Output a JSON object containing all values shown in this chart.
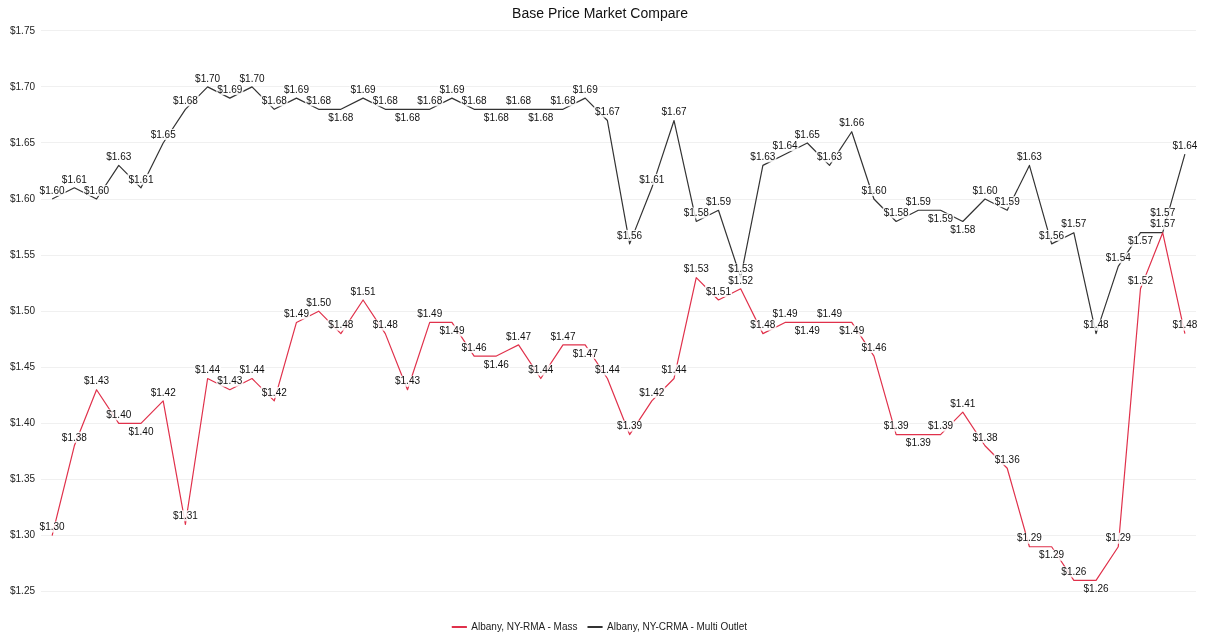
{
  "chart_data": {
    "type": "line",
    "title": "Base Price Market Compare",
    "categories": [
      null,
      null,
      null,
      null,
      null,
      null,
      null,
      null,
      null,
      null,
      null,
      null,
      null,
      null,
      null,
      null,
      null,
      null,
      null,
      null,
      null,
      null,
      null,
      null,
      null,
      null,
      null,
      null,
      null,
      null,
      null,
      null,
      null,
      null,
      null,
      null,
      null,
      null,
      null,
      null,
      null,
      null,
      null,
      null,
      null,
      null,
      null,
      null,
      null,
      null,
      null,
      null
    ],
    "series": [
      {
        "name": "Albany, NY-RMA - Mass",
        "color": "#e0314b",
        "values": [
          1.3,
          1.38,
          1.43,
          1.4,
          1.4,
          1.42,
          1.31,
          1.44,
          1.43,
          1.44,
          1.42,
          1.49,
          1.5,
          1.48,
          1.51,
          1.48,
          1.43,
          1.49,
          1.49,
          1.46,
          1.46,
          1.47,
          1.44,
          1.47,
          1.47,
          1.44,
          1.39,
          1.42,
          1.44,
          1.53,
          1.51,
          1.52,
          1.48,
          1.49,
          1.49,
          1.49,
          1.49,
          1.46,
          1.39,
          1.39,
          1.39,
          1.41,
          1.38,
          1.36,
          1.29,
          1.29,
          1.26,
          1.26,
          1.29,
          1.52,
          1.57,
          1.48
        ],
        "value_labels": [
          "$1.30",
          "$1.38",
          "$1.43",
          "$1.40",
          "$1.40",
          "$1.42",
          "$1.31",
          "$1.44",
          "$1.43",
          "$1.44",
          "$1.42",
          "$1.49",
          "$1.50",
          "$1.48",
          "$1.51",
          "$1.48",
          "$1.43",
          "$1.49",
          "$1.49",
          "$1.46",
          "$1.46",
          "$1.47",
          "$1.44",
          "$1.47",
          "$1.47",
          "$1.44",
          "$1.39",
          "$1.42",
          "$1.44",
          "$1.53",
          "$1.51",
          "$1.52",
          "$1.48",
          "$1.49",
          "$1.49",
          "$1.49",
          "$1.49",
          "$1.46",
          "$1.39",
          "$1.39",
          "$1.39",
          "$1.41",
          "$1.38",
          "$1.36",
          "$1.29",
          "$1.29",
          "$1.26",
          "$1.26",
          "$1.29",
          "$1.52",
          "$1.57",
          "$1.48"
        ]
      },
      {
        "name": "Albany, NY-CRMA - Multi Outlet",
        "color": "#333333",
        "values": [
          1.6,
          1.61,
          1.6,
          1.63,
          1.61,
          1.65,
          1.68,
          1.7,
          1.69,
          1.7,
          1.68,
          1.69,
          1.68,
          1.68,
          1.69,
          1.68,
          1.68,
          1.68,
          1.69,
          1.68,
          1.68,
          1.68,
          1.68,
          1.68,
          1.69,
          1.67,
          1.56,
          1.61,
          1.67,
          1.58,
          1.59,
          1.53,
          1.63,
          1.64,
          1.65,
          1.63,
          1.66,
          1.6,
          1.58,
          1.59,
          1.59,
          1.58,
          1.6,
          1.59,
          1.63,
          1.56,
          1.57,
          1.48,
          1.54,
          1.57,
          1.57,
          1.64
        ],
        "value_labels": [
          "$1.60",
          "$1.61",
          "$1.60",
          "$1.63",
          "$1.61",
          "$1.65",
          "$1.68",
          "$1.70",
          "$1.69",
          "$1.70",
          "$1.68",
          "$1.69",
          "$1.68",
          "$1.68",
          "$1.69",
          "$1.68",
          "$1.68",
          "$1.68",
          "$1.69",
          "$1.68",
          "$1.68",
          "$1.68",
          "$1.68",
          "$1.68",
          "$1.69",
          "$1.67",
          "$1.56",
          "$1.61",
          "$1.67",
          "$1.58",
          "$1.59",
          "$1.53",
          "$1.63",
          "$1.64",
          "$1.65",
          "$1.63",
          "$1.66",
          "$1.60",
          "$1.58",
          "$1.59",
          "$1.59",
          "$1.58",
          "$1.60",
          "$1.59",
          "$1.63",
          "$1.56",
          "$1.57",
          "$1.48",
          "$1.54",
          "$1.57",
          "$1.57",
          "$1.64"
        ]
      }
    ],
    "ylim": [
      1.25,
      1.75
    ],
    "yticks": [
      {
        "value": 1.25,
        "label": "$1.25"
      },
      {
        "value": 1.3,
        "label": "$1.30"
      },
      {
        "value": 1.35,
        "label": "$1.35"
      },
      {
        "value": 1.4,
        "label": "$1.40"
      },
      {
        "value": 1.45,
        "label": "$1.45"
      },
      {
        "value": 1.5,
        "label": "$1.50"
      },
      {
        "value": 1.55,
        "label": "$1.55"
      },
      {
        "value": 1.6,
        "label": "$1.60"
      },
      {
        "value": 1.65,
        "label": "$1.65"
      },
      {
        "value": 1.7,
        "label": "$1.70"
      },
      {
        "value": 1.75,
        "label": "$1.75"
      }
    ],
    "grid": "y",
    "legend": "bottom",
    "marker": "none",
    "line_style": "solid"
  }
}
